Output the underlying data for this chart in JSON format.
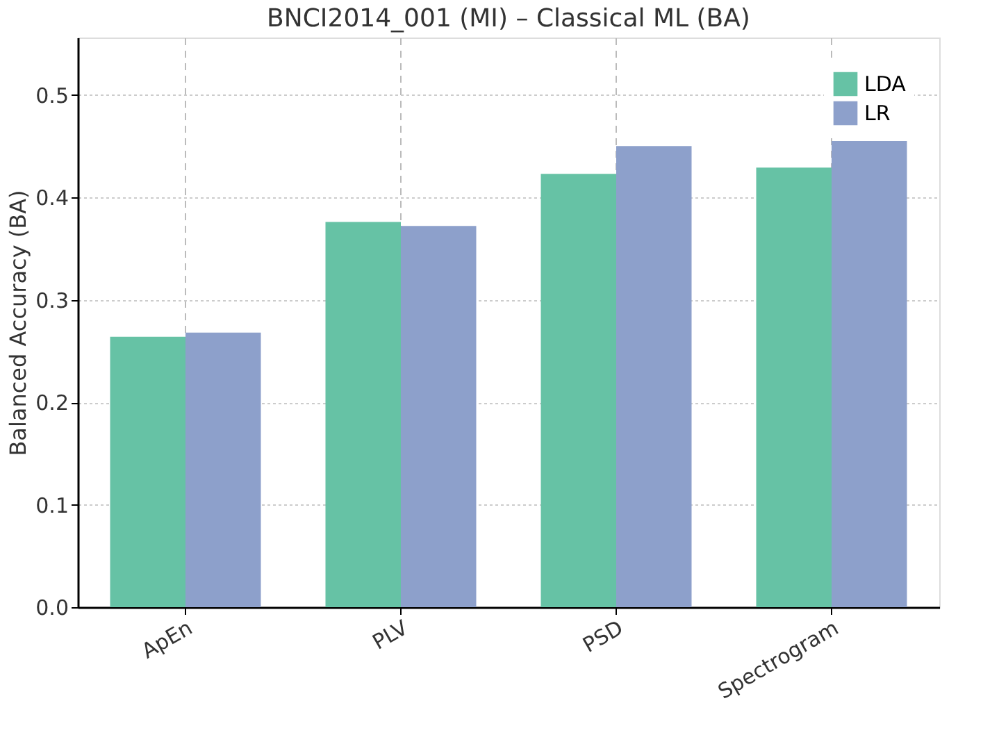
{
  "chart_data": {
    "type": "bar",
    "title": "BNCI2014_001 (MI) – Classical ML (BA)",
    "ylabel": "Balanced Accuracy (BA)",
    "categories": [
      "ApEn",
      "PLV",
      "PSD",
      "Spectrogram"
    ],
    "series": [
      {
        "name": "LDA",
        "color": "#66c2a5",
        "values": [
          0.264,
          0.376,
          0.423,
          0.429
        ]
      },
      {
        "name": "LR",
        "color": "#8da0cb",
        "values": [
          0.268,
          0.372,
          0.45,
          0.455
        ]
      }
    ],
    "ylim": [
      0,
      0.556
    ],
    "yticks": [
      {
        "value": 0,
        "label": "0.0"
      },
      0.1,
      0.2,
      0.3,
      0.4,
      0.5
    ],
    "grid": true,
    "legend": "top right"
  }
}
